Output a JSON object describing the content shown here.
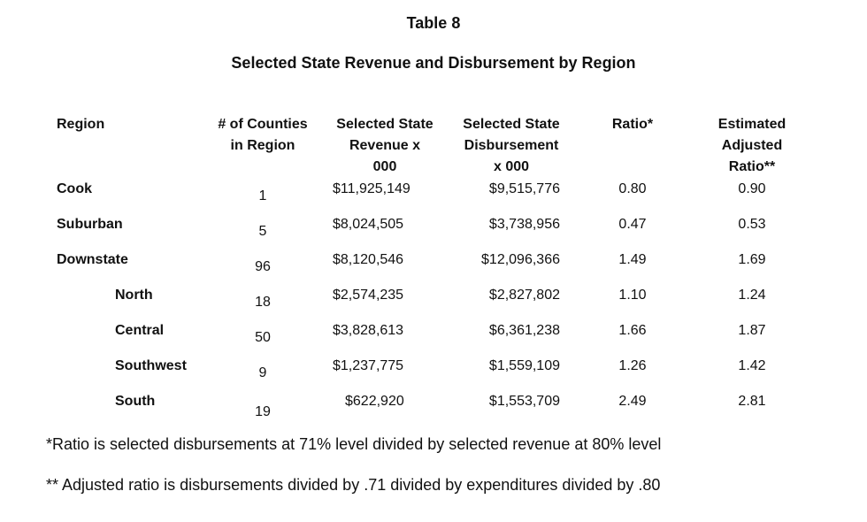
{
  "title": "Table 8",
  "subtitle": "Selected State Revenue and Disbursement by Region",
  "columns": [
    {
      "lines": [
        "Region"
      ]
    },
    {
      "lines": [
        "# of Counties",
        "in Region"
      ]
    },
    {
      "lines": [
        "Selected State",
        "Revenue x",
        "000"
      ]
    },
    {
      "lines": [
        "Selected State",
        "Disbursement",
        "x 000"
      ]
    },
    {
      "lines": [
        "Ratio*"
      ]
    },
    {
      "lines": [
        "Estimated",
        "Adjusted",
        "Ratio**"
      ]
    }
  ],
  "rows": [
    {
      "region": "Cook",
      "counties": "1",
      "revenue": "$11,925,149",
      "disbursement": "$9,515,776",
      "ratio": "0.80",
      "adjusted": "0.90",
      "indent": false
    },
    {
      "region": "Suburban",
      "counties": "5",
      "revenue": "$8,024,505",
      "disbursement": "$3,738,956",
      "ratio": "0.47",
      "adjusted": "0.53",
      "indent": false
    },
    {
      "region": "Downstate",
      "counties": "96",
      "revenue": "$8,120,546",
      "disbursement": "$12,096,366",
      "ratio": "1.49",
      "adjusted": "1.69",
      "indent": false
    },
    {
      "region": "North",
      "counties": "18",
      "revenue": "$2,574,235",
      "disbursement": "$2,827,802",
      "ratio": "1.10",
      "adjusted": "1.24",
      "indent": true
    },
    {
      "region": "Central",
      "counties": "50",
      "revenue": "$3,828,613",
      "disbursement": "$6,361,238",
      "ratio": "1.66",
      "adjusted": "1.87",
      "indent": true
    },
    {
      "region": "Southwest",
      "counties": "9",
      "revenue": "$1,237,775",
      "disbursement": "$1,559,109",
      "ratio": "1.26",
      "adjusted": "1.42",
      "indent": true
    },
    {
      "region": "South",
      "counties": "19",
      "revenue": "$622,920",
      "disbursement": "$1,553,709",
      "ratio": "2.49",
      "adjusted": "2.81",
      "indent": true
    }
  ],
  "footnotes": [
    "*Ratio is selected disbursements at 71% level divided by selected revenue at 80% level",
    "** Adjusted ratio is disbursements divided by .71 divided by expenditures divided by .80"
  ]
}
